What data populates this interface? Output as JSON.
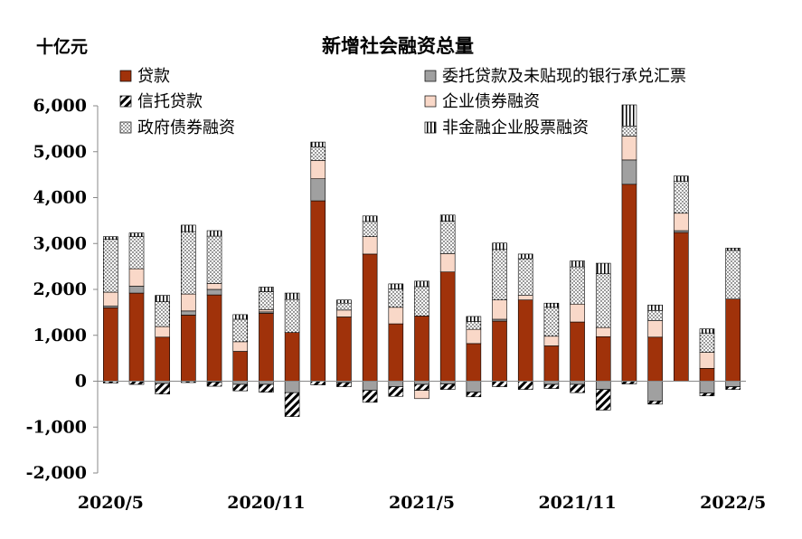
{
  "chart_data": {
    "type": "bar",
    "stacked": true,
    "title": "新增社会融资总量",
    "unit_label": "十亿元",
    "categories": [
      "2020/5",
      "2020/6",
      "2020/7",
      "2020/8",
      "2020/9",
      "2020/10",
      "2020/11",
      "2020/12",
      "2021/1",
      "2021/2",
      "2021/3",
      "2021/4",
      "2021/5",
      "2021/6",
      "2021/7",
      "2021/8",
      "2021/9",
      "2021/10",
      "2021/11",
      "2021/12",
      "2022/1",
      "2022/2",
      "2022/3",
      "2022/4",
      "2022/5"
    ],
    "x_tick_labels": [
      {
        "index": 0,
        "label": "2020/5"
      },
      {
        "index": 6,
        "label": "2020/11"
      },
      {
        "index": 12,
        "label": "2021/5"
      },
      {
        "index": 18,
        "label": "2021/11"
      },
      {
        "index": 24,
        "label": "2022/5"
      }
    ],
    "ylim": [
      -2000,
      6000
    ],
    "yticks": [
      -2000,
      -1000,
      0,
      1000,
      2000,
      3000,
      4000,
      5000,
      6000
    ],
    "ytick_labels": [
      "-2,000",
      "-1,000",
      "0",
      "1,000",
      "2,000",
      "3,000",
      "4,000",
      "5,000",
      "6,000"
    ],
    "legend_position": "top",
    "series": [
      {
        "name": "贷款",
        "key": "loans",
        "color": "#a0320a",
        "pattern": "solid",
        "values": [
          1600,
          1920,
          960,
          1440,
          1880,
          650,
          1480,
          1060,
          3930,
          1400,
          2770,
          1250,
          1420,
          2380,
          820,
          1310,
          1770,
          770,
          1290,
          970,
          4290,
          960,
          3240,
          280,
          1790
        ]
      },
      {
        "name": "委托贷款及未贴现的银行承兑汇票",
        "key": "entrusted",
        "color": "#a0a0a0",
        "pattern": "solid",
        "values": [
          40,
          150,
          0,
          90,
          120,
          0,
          30,
          0,
          480,
          0,
          0,
          0,
          0,
          0,
          0,
          40,
          0,
          0,
          0,
          0,
          530,
          0,
          40,
          0,
          0
        ]
      },
      {
        "name": "信托贷款",
        "key": "trust",
        "color": "#000000",
        "pattern": "diagonal",
        "values": [
          -40,
          -70,
          -230,
          -30,
          -90,
          -140,
          -170,
          -520,
          -80,
          -90,
          -260,
          -210,
          -130,
          -120,
          -100,
          -120,
          -180,
          -90,
          -180,
          -450,
          -60,
          -70,
          0,
          -60,
          -60
        ]
      },
      {
        "name": "企业债券融资",
        "key": "corp_bonds",
        "color": "#f9d8c8",
        "pattern": "solid",
        "values": [
          300,
          380,
          230,
          370,
          130,
          210,
          50,
          0,
          400,
          150,
          380,
          360,
          0,
          400,
          310,
          420,
          100,
          210,
          390,
          200,
          520,
          360,
          380,
          350,
          0
        ]
      },
      {
        "name": "政府债券融资",
        "key": "gov_bonds",
        "color": "#ffffff",
        "pattern": "dots",
        "values": [
          1150,
          700,
          540,
          1360,
          1030,
          490,
          390,
          720,
          290,
          150,
          330,
          400,
          640,
          710,
          170,
          1100,
          800,
          630,
          810,
          1170,
          220,
          220,
          700,
          420,
          1060
        ]
      },
      {
        "name": "非金融企业股票融资",
        "key": "equity",
        "color": "#ffffff",
        "pattern": "vertical",
        "values": [
          60,
          80,
          140,
          140,
          120,
          100,
          100,
          140,
          110,
          70,
          120,
          110,
          120,
          130,
          110,
          140,
          100,
          90,
          130,
          230,
          460,
          120,
          110,
          90,
          50
        ]
      }
    ],
    "extra_negative": [
      {
        "key": "entrusted",
        "values": [
          0,
          0,
          -50,
          0,
          -20,
          -70,
          -70,
          -250,
          0,
          -30,
          -200,
          -120,
          -70,
          -60,
          -240,
          0,
          0,
          -70,
          -70,
          -180,
          0,
          -430,
          0,
          -260,
          -120
        ]
      },
      {
        "key": "corp_bonds",
        "values": [
          0,
          0,
          0,
          0,
          0,
          0,
          0,
          0,
          0,
          0,
          0,
          0,
          -180,
          0,
          0,
          0,
          0,
          0,
          0,
          0,
          0,
          0,
          0,
          0,
          0
        ]
      }
    ]
  }
}
